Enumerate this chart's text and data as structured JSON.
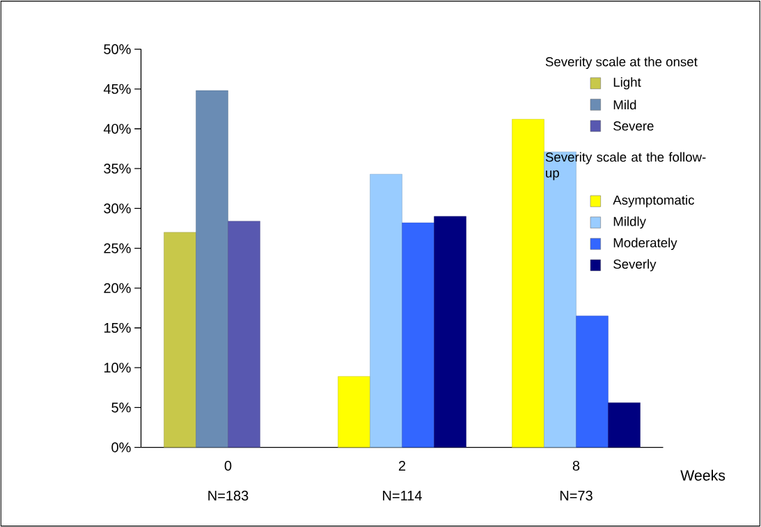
{
  "chart_data": {
    "type": "bar",
    "categories": [
      "0",
      "2",
      "8"
    ],
    "xlabel": "Weeks",
    "legend_title": "Severity  scale at the onset",
    "annotations": [
      "N=183",
      "N=114",
      "N=73",
      "Severity scale at the follow-up"
    ],
    "series": [
      {
        "name": "Light",
        "color": "#c8c84a",
        "values": [
          27.0,
          null,
          null
        ]
      },
      {
        "name": "Mild",
        "color": "#6a8cb4",
        "values": [
          44.8,
          null,
          null
        ]
      },
      {
        "name": "Severe",
        "color": "#5858b0",
        "values": [
          28.4,
          null,
          null
        ]
      },
      {
        "name": "Asymptomatic",
        "color": "#ffff00",
        "values": [
          null,
          8.9,
          41.2
        ]
      },
      {
        "name": "Mildly",
        "color": "#99ccff",
        "values": [
          null,
          34.3,
          37.1
        ]
      },
      {
        "name": "Moderately",
        "color": "#3366ff",
        "values": [
          null,
          28.2,
          16.5
        ]
      },
      {
        "name": "Severly",
        "color": "#000080",
        "values": [
          null,
          29.0,
          5.6
        ]
      }
    ],
    "ylim": [
      0,
      50
    ],
    "yticks": [
      {
        "value": 0,
        "label": "0%"
      },
      {
        "value": 5,
        "label": "5%"
      },
      {
        "value": 10,
        "label": "10%"
      },
      {
        "value": 15,
        "label": "15%"
      },
      {
        "value": 20,
        "label": "20%"
      },
      {
        "value": 25,
        "label": "25%"
      },
      {
        "value": 30,
        "label": "30%"
      },
      {
        "value": 35,
        "label": "35%"
      },
      {
        "value": 40,
        "label": "40%"
      },
      {
        "value": 45,
        "label": "45%"
      },
      {
        "value": 50,
        "label": "50%"
      }
    ],
    "grid": false,
    "legend": "right"
  }
}
